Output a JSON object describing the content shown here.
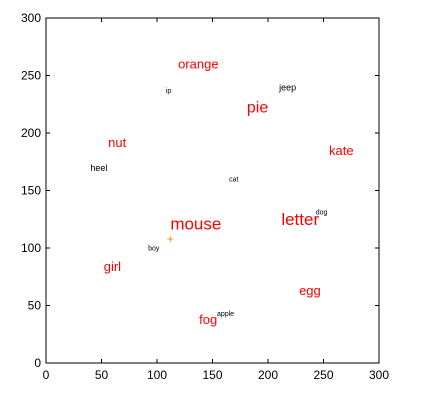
{
  "chart_data": {
    "type": "scatter",
    "title": "",
    "xlabel": "",
    "ylabel": "",
    "xlim": [
      0,
      300
    ],
    "ylim": [
      0,
      300
    ],
    "grid": false,
    "x_ticks": [
      0,
      50,
      100,
      150,
      200,
      250,
      300
    ],
    "y_ticks": [
      0,
      50,
      100,
      150,
      200,
      250,
      300
    ],
    "colors": {
      "highlight": "#ff0000",
      "normal": "#000000",
      "marker": "#ff8c00"
    },
    "marker": {
      "label": "+",
      "x": 112,
      "y": 108
    },
    "points": [
      {
        "label": "orange",
        "x": 119,
        "y": 256,
        "size": "large",
        "highlight": true
      },
      {
        "label": "ip",
        "x": 108,
        "y": 235,
        "size": "tiny",
        "highlight": false
      },
      {
        "label": "jeep",
        "x": 210,
        "y": 237,
        "size": "small",
        "highlight": false
      },
      {
        "label": "pie",
        "x": 181,
        "y": 218,
        "size": "xlarge",
        "highlight": true
      },
      {
        "label": "nut",
        "x": 56,
        "y": 188,
        "size": "large",
        "highlight": true
      },
      {
        "label": "kate",
        "x": 255,
        "y": 181,
        "size": "large",
        "highlight": true
      },
      {
        "label": "heel",
        "x": 40,
        "y": 167,
        "size": "small",
        "highlight": false
      },
      {
        "label": "cat",
        "x": 165,
        "y": 158,
        "size": "tiny",
        "highlight": false
      },
      {
        "label": "dog",
        "x": 243,
        "y": 129,
        "size": "tiny",
        "highlight": false
      },
      {
        "label": "letter",
        "x": 212,
        "y": 120,
        "size": "xxlarge",
        "highlight": true
      },
      {
        "label": "mouse",
        "x": 112,
        "y": 116,
        "size": "xxlarge",
        "highlight": true
      },
      {
        "label": "boy",
        "x": 92,
        "y": 98,
        "size": "tiny",
        "highlight": false
      },
      {
        "label": "girl",
        "x": 52,
        "y": 80,
        "size": "large",
        "highlight": true
      },
      {
        "label": "egg",
        "x": 228,
        "y": 59,
        "size": "large",
        "highlight": true
      },
      {
        "label": "apple",
        "x": 154,
        "y": 41,
        "size": "tiny",
        "highlight": false
      },
      {
        "label": "fog",
        "x": 138,
        "y": 34,
        "size": "large",
        "highlight": true
      }
    ]
  }
}
